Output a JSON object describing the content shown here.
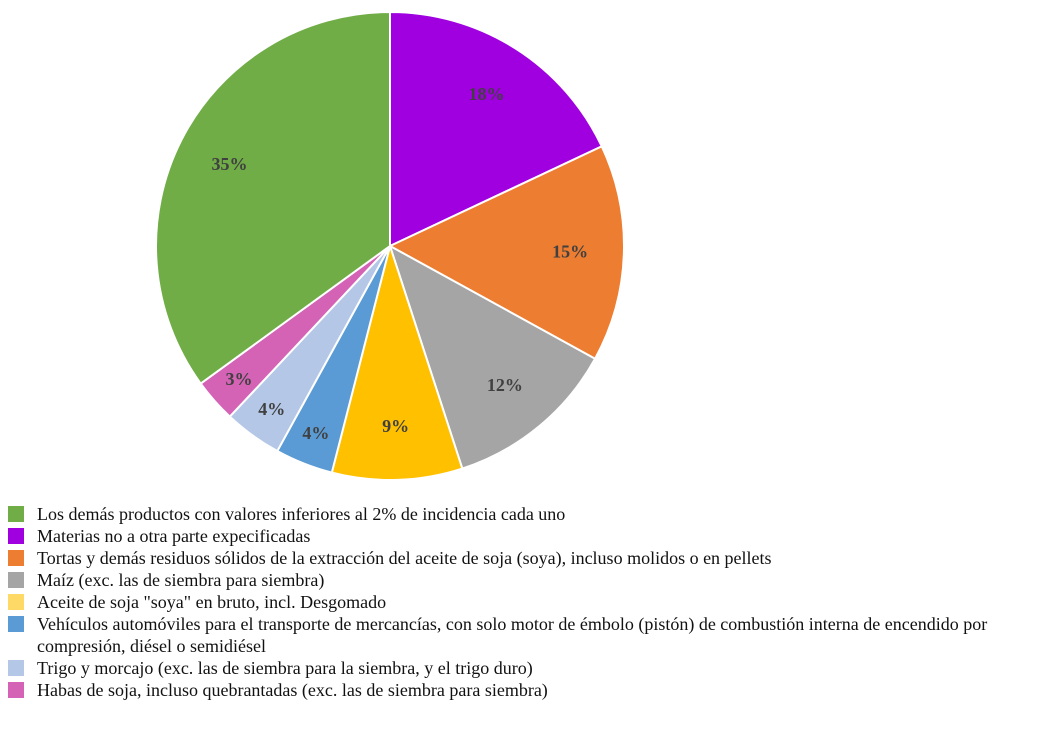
{
  "chart_data": {
    "type": "pie",
    "slices": [
      {
        "label": "Materias no a otra parte expecificadas",
        "value": 18,
        "display": "18%",
        "color": "#a000e0"
      },
      {
        "label": "Tortas y demás residuos sólidos de la extracción del aceite de soja (soya), incluso molidos o en pellets",
        "value": 15,
        "display": "15%",
        "color": "#ed7d31"
      },
      {
        "label": "Maíz (exc. las de siembra para siembra)",
        "value": 12,
        "display": "12%",
        "color": "#a5a5a5"
      },
      {
        "label": "Aceite de soja \"soya\" en bruto, incl. Desgomado",
        "value": 9,
        "display": "9%",
        "color": "#ffc000"
      },
      {
        "label": "Vehículos automóviles para el transporte de mercancías, con solo motor de émbolo (pistón) de combustión interna de encendido por compresión, diésel o semidiésel",
        "value": 4,
        "display": "4%",
        "color": "#5b9bd5"
      },
      {
        "label": "Trigo y morcajo (exc. las de siembra para la siembra, y el trigo duro)",
        "value": 4,
        "display": "4%",
        "color": "#b4c7e7"
      },
      {
        "label": "Habas de soja, incluso quebrantadas (exc. las de siembra para siembra)",
        "value": 3,
        "display": "3%",
        "color": "#d462b5"
      },
      {
        "label": "Los demás productos con valores inferiores al 2% de incidencia cada uno",
        "value": 35,
        "display": "35%",
        "color": "#70ad47"
      }
    ],
    "legend": [
      {
        "label": "Los demás productos con valores inferiores al 2% de incidencia cada uno",
        "color": "#70ad47"
      },
      {
        "label": "Materias no a otra parte expecificadas",
        "color": "#a000e0"
      },
      {
        "label": "Tortas y demás residuos sólidos de la extracción del aceite de soja (soya), incluso molidos o en pellets",
        "color": "#ed7d31"
      },
      {
        "label": "Maíz (exc. las de siembra para siembra)",
        "color": "#a5a5a5"
      },
      {
        "label": "Aceite de soja \"soya\" en bruto, incl. Desgomado",
        "color": "#ffd966"
      },
      {
        "label": "Vehículos automóviles para el transporte de mercancías, con solo motor de émbolo (pistón) de combustión interna de encendido por compresión, diésel o semidiésel",
        "color": "#5b9bd5"
      },
      {
        "label": "Trigo y morcajo (exc. las de siembra para la siembra, y el trigo duro)",
        "color": "#b4c7e7"
      },
      {
        "label": "Habas de soja, incluso quebrantadas (exc. las de siembra para siembra)",
        "color": "#d462b5"
      }
    ],
    "legend_position": "bottom-left"
  }
}
